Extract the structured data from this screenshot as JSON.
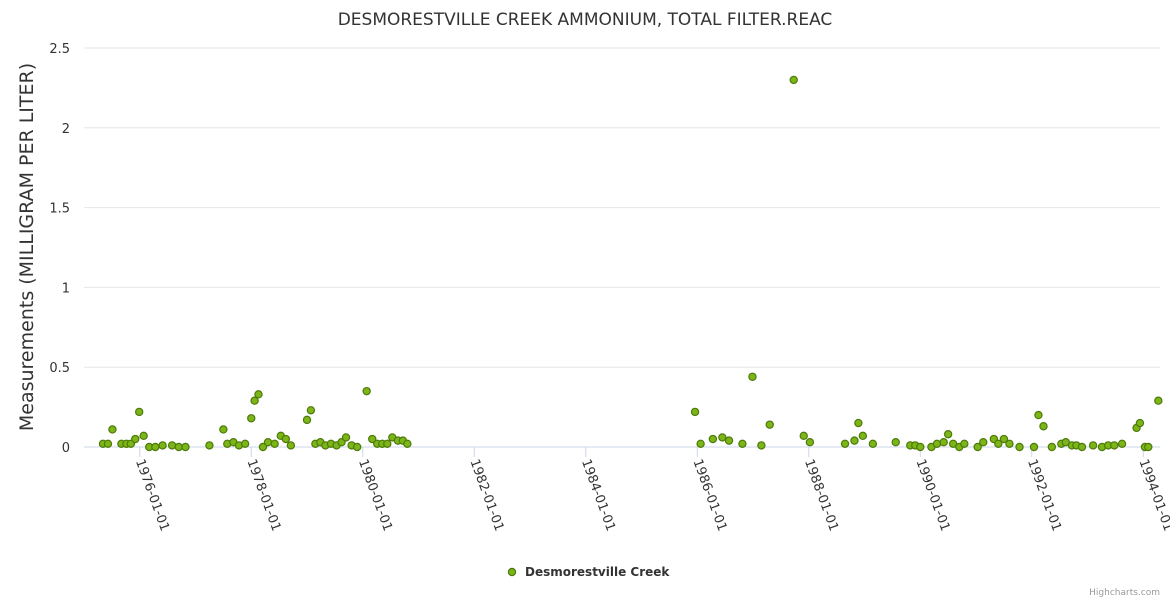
{
  "chart_data": {
    "type": "scatter",
    "title": "DESMORESTVILLE CREEK AMMONIUM, TOTAL FILTER.REAC",
    "ylabel": "Measurements (MILLIGRAM PER LITER)",
    "xlabel": "",
    "ylim": [
      0,
      2.5
    ],
    "yticks": [
      0,
      0.5,
      1,
      1.5,
      2,
      2.5
    ],
    "ytick_labels": [
      "0",
      "0.5",
      "1",
      "1.5",
      "2",
      "2.5"
    ],
    "xlim": [
      1975.0,
      1994.3
    ],
    "xticks": [
      1976,
      1978,
      1980,
      1982,
      1984,
      1986,
      1988,
      1990,
      1992,
      1994
    ],
    "xtick_labels": [
      "1976-01-01",
      "1978-01-01",
      "1980-01-01",
      "1982-01-01",
      "1984-01-01",
      "1986-01-01",
      "1988-01-01",
      "1990-01-01",
      "1992-01-01",
      "1994-01-01"
    ],
    "legend_position": "bottom-center",
    "credits": "Highcharts.com",
    "series": [
      {
        "name": "Desmorestville Creek",
        "color": "#7cb518",
        "marker_stroke": "#4d7a0a",
        "x": [
          1975.34,
          1975.43,
          1975.51,
          1975.67,
          1975.76,
          1975.84,
          1975.92,
          1975.99,
          1976.07,
          1976.17,
          1976.28,
          1976.41,
          1976.58,
          1976.7,
          1976.82,
          1977.25,
          1977.5,
          1977.57,
          1977.68,
          1977.78,
          1977.89,
          1978.0,
          1978.06,
          1978.13,
          1978.21,
          1978.3,
          1978.42,
          1978.53,
          1978.62,
          1978.71,
          1979.0,
          1979.07,
          1979.15,
          1979.24,
          1979.33,
          1979.43,
          1979.53,
          1979.62,
          1979.7,
          1979.8,
          1979.9,
          1980.07,
          1980.17,
          1980.26,
          1980.35,
          1980.44,
          1980.53,
          1980.63,
          1980.72,
          1980.8,
          1985.96,
          1986.06,
          1986.28,
          1986.45,
          1986.57,
          1986.81,
          1986.99,
          1987.15,
          1987.3,
          1987.73,
          1987.91,
          1988.02,
          1988.65,
          1988.82,
          1988.89,
          1988.97,
          1989.15,
          1989.56,
          1989.82,
          1989.91,
          1990.0,
          1990.2,
          1990.3,
          1990.42,
          1990.5,
          1990.59,
          1990.7,
          1990.79,
          1991.03,
          1991.13,
          1991.32,
          1991.4,
          1991.5,
          1991.6,
          1991.78,
          1992.04,
          1992.12,
          1992.21,
          1992.36,
          1992.53,
          1992.61,
          1992.72,
          1992.8,
          1992.9,
          1993.1,
          1993.26,
          1993.37,
          1993.48,
          1993.62,
          1993.88,
          1993.94,
          1994.03,
          1994.09,
          1994.27
        ],
        "y": [
          0.02,
          0.02,
          0.11,
          0.02,
          0.02,
          0.02,
          0.05,
          0.22,
          0.07,
          0.0,
          0.0,
          0.01,
          0.01,
          0.0,
          0.0,
          0.01,
          0.11,
          0.02,
          0.03,
          0.01,
          0.02,
          0.18,
          0.29,
          0.33,
          0.0,
          0.03,
          0.02,
          0.07,
          0.05,
          0.01,
          0.17,
          0.23,
          0.02,
          0.03,
          0.01,
          0.02,
          0.01,
          0.03,
          0.06,
          0.01,
          0.0,
          0.35,
          0.05,
          0.02,
          0.02,
          0.02,
          0.06,
          0.04,
          0.04,
          0.02,
          0.22,
          0.02,
          0.05,
          0.06,
          0.04,
          0.02,
          0.44,
          0.01,
          0.14,
          2.3,
          0.07,
          0.03,
          0.02,
          0.04,
          0.15,
          0.07,
          0.02,
          0.03,
          0.01,
          0.01,
          0.0,
          0.0,
          0.02,
          0.03,
          0.08,
          0.02,
          0.0,
          0.02,
          0.0,
          0.03,
          0.05,
          0.02,
          0.05,
          0.02,
          0.0,
          0.0,
          0.2,
          0.13,
          0.0,
          0.02,
          0.03,
          0.01,
          0.01,
          0.0,
          0.01,
          0.0,
          0.01,
          0.01,
          0.02,
          0.12,
          0.15,
          0.0,
          0.0,
          0.29
        ]
      }
    ]
  }
}
